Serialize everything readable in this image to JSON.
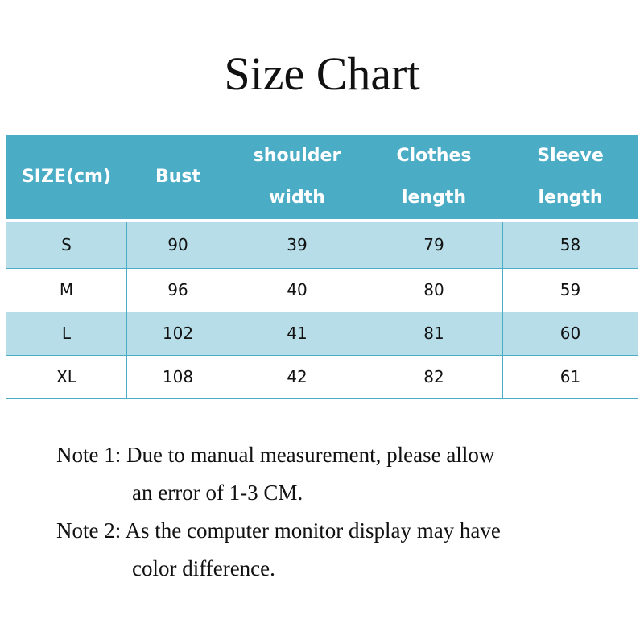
{
  "title": "Size Chart",
  "colors": {
    "header": "#4bacc6",
    "stripe": "#b7dee8"
  },
  "table": {
    "headers": [
      [
        "SIZE(cm)"
      ],
      [
        "Bust"
      ],
      [
        "shoulder",
        "width"
      ],
      [
        "Clothes",
        "length"
      ],
      [
        "Sleeve",
        "length"
      ]
    ],
    "rows": [
      [
        "S",
        "90",
        "39",
        "79",
        "58"
      ],
      [
        "M",
        "96",
        "40",
        "80",
        "59"
      ],
      [
        "L",
        "102",
        "41",
        "81",
        "60"
      ],
      [
        "XL",
        "108",
        "42",
        "82",
        "61"
      ]
    ]
  },
  "notes": [
    {
      "line1": "Note 1: Due to manual measurement, please allow",
      "line2": "an error of 1-3 CM."
    },
    {
      "line1": "Note 2: As the computer monitor display may have",
      "line2": "color difference."
    }
  ]
}
